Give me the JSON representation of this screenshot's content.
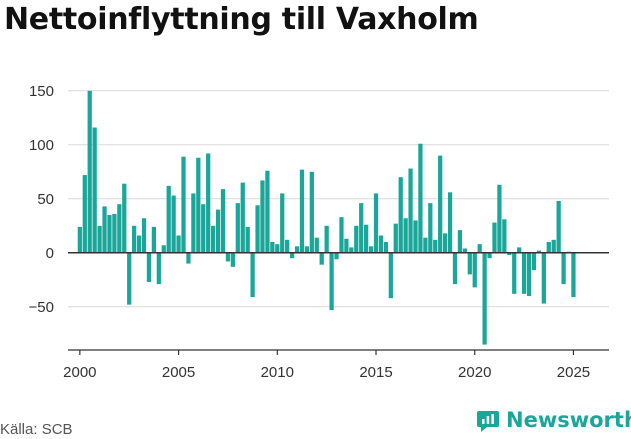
{
  "title": "Nettoinflyttning till Vaxholm",
  "source": "Källa: SCB",
  "brand": {
    "name": "Newsworthy",
    "color": "#1aa79a"
  },
  "chart_data": {
    "type": "bar",
    "title": "Nettoinflyttning till Vaxholm",
    "xlabel": "",
    "ylabel": "",
    "frequency": "quarterly",
    "x_start": "2000 Q1",
    "color": "#1aa79a",
    "ylim": [
      -90,
      160
    ],
    "xlim": [
      1999.4,
      2026.8
    ],
    "yticks": [
      150,
      100,
      50,
      0,
      -50
    ],
    "ytick_labels": [
      "150",
      "100",
      "50",
      "0",
      "−50"
    ],
    "xticks": [
      2000,
      2005,
      2010,
      2015,
      2020,
      2025
    ],
    "xtick_labels": [
      "2000",
      "2005",
      "2010",
      "2015",
      "2020",
      "2025"
    ],
    "grid": true,
    "values": [
      24,
      72,
      150,
      116,
      25,
      43,
      35,
      36,
      45,
      64,
      -48,
      25,
      16,
      32,
      -27,
      24,
      -29,
      7,
      62,
      53,
      16,
      89,
      -10,
      55,
      88,
      45,
      92,
      25,
      40,
      59,
      -8,
      -13,
      46,
      65,
      24,
      -41,
      44,
      67,
      76,
      10,
      8,
      55,
      12,
      -5,
      6,
      77,
      6,
      75,
      14,
      -11,
      25,
      -53,
      -6,
      33,
      13,
      5,
      25,
      46,
      26,
      6,
      55,
      16,
      10,
      -42,
      27,
      70,
      32,
      78,
      30,
      101,
      14,
      46,
      12,
      90,
      18,
      56,
      -29,
      21,
      4,
      -20,
      -32,
      8,
      -85,
      -5,
      28,
      63,
      31,
      -2,
      -38,
      5,
      -38,
      -40,
      -16,
      2,
      -47,
      10,
      12,
      48,
      -29,
      1,
      -41
    ]
  }
}
